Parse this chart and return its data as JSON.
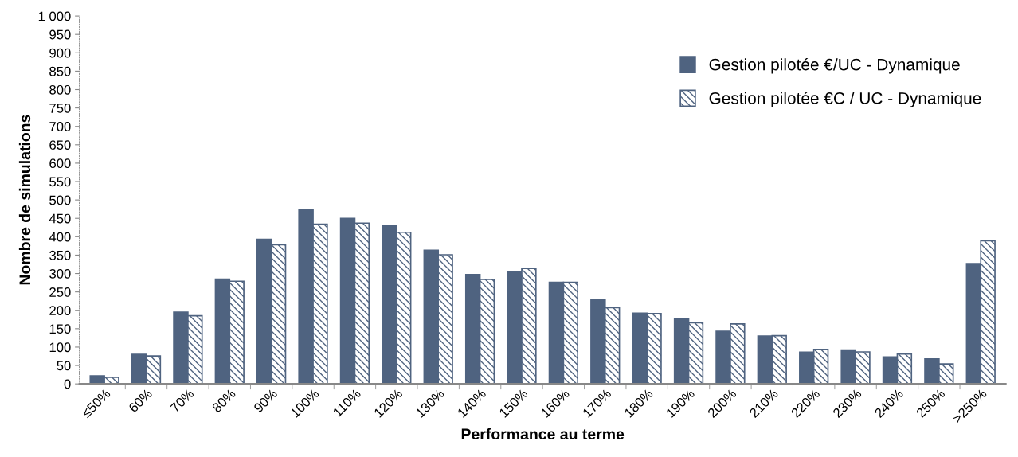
{
  "chart_data": {
    "type": "bar",
    "xlabel": "Performance au terme",
    "ylabel": "Nombre de simulations",
    "categories": [
      "≤50%",
      "60%",
      "70%",
      "80%",
      "90%",
      "100%",
      "110%",
      "120%",
      "130%",
      "140%",
      "150%",
      "160%",
      "170%",
      "180%",
      "190%",
      "200%",
      "210%",
      "220%",
      "230%",
      "240%",
      "250%",
      ">250%"
    ],
    "series": [
      {
        "name": "Gestion pilotée €/UC - Dynamique",
        "color": "#4f6380",
        "values": [
          22,
          80,
          195,
          285,
          393,
          474,
          450,
          431,
          363,
          297,
          305,
          276,
          229,
          192,
          178,
          143,
          130,
          86,
          92,
          73,
          68,
          327
        ]
      },
      {
        "name": "Gestion pilotée €C / UC - Dynamique",
        "color": "#4f6380",
        "values": [
          18,
          76,
          185,
          279,
          378,
          434,
          437,
          412,
          351,
          284,
          314,
          276,
          207,
          191,
          166,
          163,
          131,
          94,
          87,
          81,
          54,
          389
        ]
      }
    ],
    "ylim": [
      0,
      1000
    ],
    "yticks": [
      0,
      50,
      100,
      150,
      200,
      250,
      300,
      350,
      400,
      450,
      500,
      550,
      600,
      650,
      700,
      750,
      800,
      850,
      900,
      950,
      {
        "value": 1000,
        "label": "1 000"
      }
    ],
    "grid": false,
    "legend": "top right"
  }
}
